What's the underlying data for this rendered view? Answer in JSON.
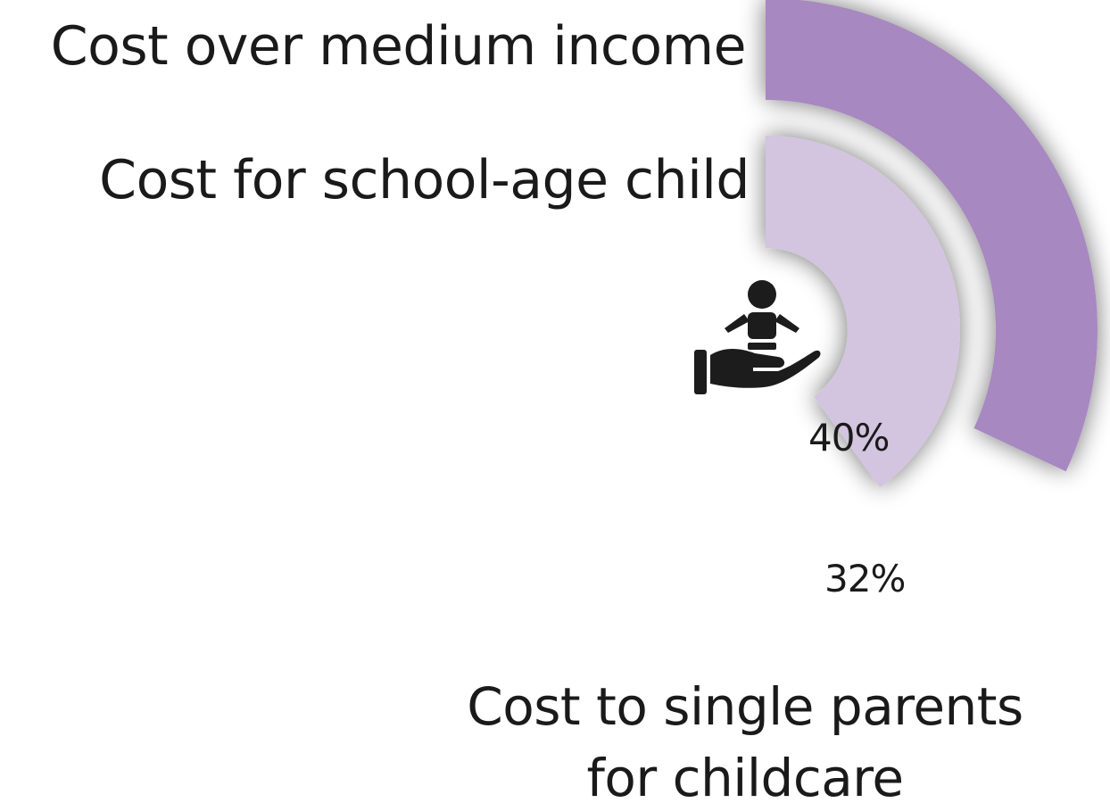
{
  "colors": {
    "outer_arc": "#a788c0",
    "inner_arc": "#d3c4df",
    "shadow": "#9a9a9a",
    "text": "#1a1a1a",
    "icon": "#1c1c1c"
  },
  "icon_name": "hand-holding-child-icon",
  "chart_data": {
    "type": "pie",
    "title_lines": [
      "Cost to single parents",
      "for childcare"
    ],
    "series": [
      {
        "name": "Cost over medium income",
        "value_label": "32%",
        "value": 32,
        "color": "#a788c0"
      },
      {
        "name": "Cost for school-age child",
        "value_label": "40%",
        "value": 40,
        "color": "#d3c4df"
      }
    ]
  }
}
